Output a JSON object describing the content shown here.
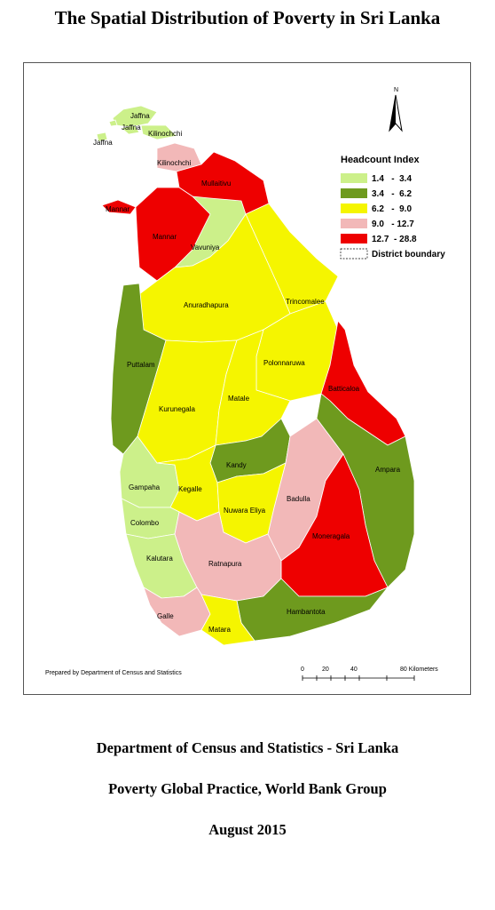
{
  "title": "The Spatial Distribution of Poverty in Sri Lanka",
  "map": {
    "north_label": "N",
    "legend": {
      "title": "Headcount Index",
      "items": [
        {
          "range": "1.4   -  3.4",
          "color": "#ccf08a"
        },
        {
          "range": "3.4   -  6.2",
          "color": "#6e9a1e"
        },
        {
          "range": "6.2   -  9.0",
          "color": "#f5f500"
        },
        {
          "range": "9.0   - 12.7",
          "color": "#f2b8b8"
        },
        {
          "range": "12.7  - 28.8",
          "color": "#ee0000"
        }
      ],
      "boundary_label": "District boundary"
    },
    "districts": {
      "jaffna": "Jaffna",
      "jaffna_2": "Jaffna",
      "jaffna_3": "Jaffna",
      "kilinochchi_n": "Kilinochchi",
      "kilinochchi": "Kilinochchi",
      "mullaitivu": "Mullaitivu",
      "mannar_island": "Mannar",
      "mannar": "Mannar",
      "vavuniya": "Vavuniya",
      "trincomalee": "Trincomalee",
      "anuradhapura": "Anuradhapura",
      "puttalam": "Puttalam",
      "polonnaruwa": "Polonnaruwa",
      "batticaloa": "Batticaloa",
      "kurunegala": "Kurunegala",
      "matale": "Matale",
      "kandy": "Kandy",
      "ampara": "Ampara",
      "gampaha": "Gampaha",
      "kegalle": "Kegalle",
      "badulla": "Badulla",
      "nuwara_eliya": "Nuwara Eliya",
      "colombo": "Colombo",
      "moneragala": "Moneragala",
      "kalutara": "Kalutara",
      "ratnapura": "Ratnapura",
      "hambantota": "Hambantota",
      "galle": "Galle",
      "matara": "Matara"
    },
    "credit": "Prepared by Department of Census and Statistics",
    "scale": {
      "ticks": [
        "0",
        "20",
        "40",
        "80 Kilometers"
      ]
    }
  },
  "footer": {
    "line1": "Department of Census and Statistics - Sri Lanka",
    "line2": "Poverty Global Practice, World Bank Group",
    "line3": "August 2015"
  }
}
